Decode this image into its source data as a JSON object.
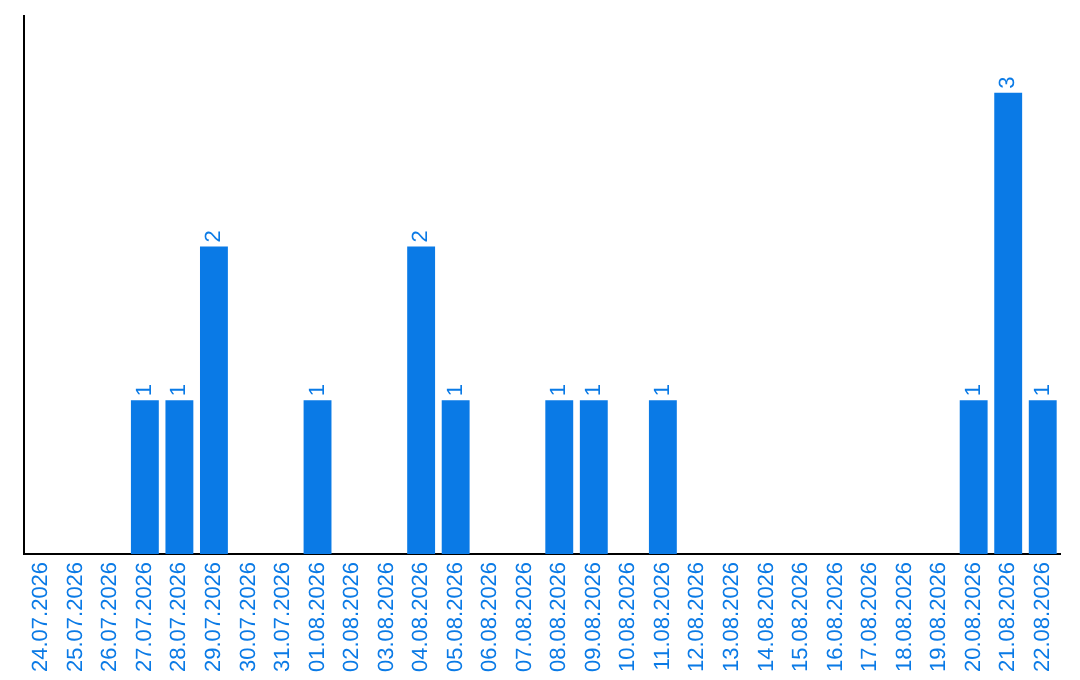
{
  "chart_data": {
    "type": "bar",
    "categories": [
      "24.07.2026",
      "25.07.2026",
      "26.07.2026",
      "27.07.2026",
      "28.07.2026",
      "29.07.2026",
      "30.07.2026",
      "31.07.2026",
      "01.08.2026",
      "02.08.2026",
      "03.08.2026",
      "04.08.2026",
      "05.08.2026",
      "06.08.2026",
      "07.08.2026",
      "08.08.2026",
      "09.08.2026",
      "10.08.2026",
      "11.08.2026",
      "12.08.2026",
      "13.08.2026",
      "14.08.2026",
      "15.08.2026",
      "16.08.2026",
      "17.08.2026",
      "18.08.2026",
      "19.08.2026",
      "20.08.2026",
      "21.08.2026",
      "22.08.2026"
    ],
    "values": [
      0,
      0,
      0,
      1,
      1,
      2,
      0,
      0,
      1,
      0,
      0,
      2,
      1,
      0,
      0,
      1,
      1,
      0,
      1,
      0,
      0,
      0,
      0,
      0,
      0,
      0,
      0,
      1,
      3,
      1
    ],
    "value_labels": [
      null,
      null,
      null,
      "1",
      "1",
      "2",
      null,
      null,
      "1",
      null,
      null,
      "2",
      "1",
      null,
      null,
      "1",
      "1",
      null,
      "1",
      null,
      null,
      null,
      null,
      null,
      null,
      null,
      null,
      "1",
      "3",
      "1"
    ],
    "color": "#0a7ae6",
    "grid": false,
    "legend": false,
    "tick_labels": "x"
  }
}
